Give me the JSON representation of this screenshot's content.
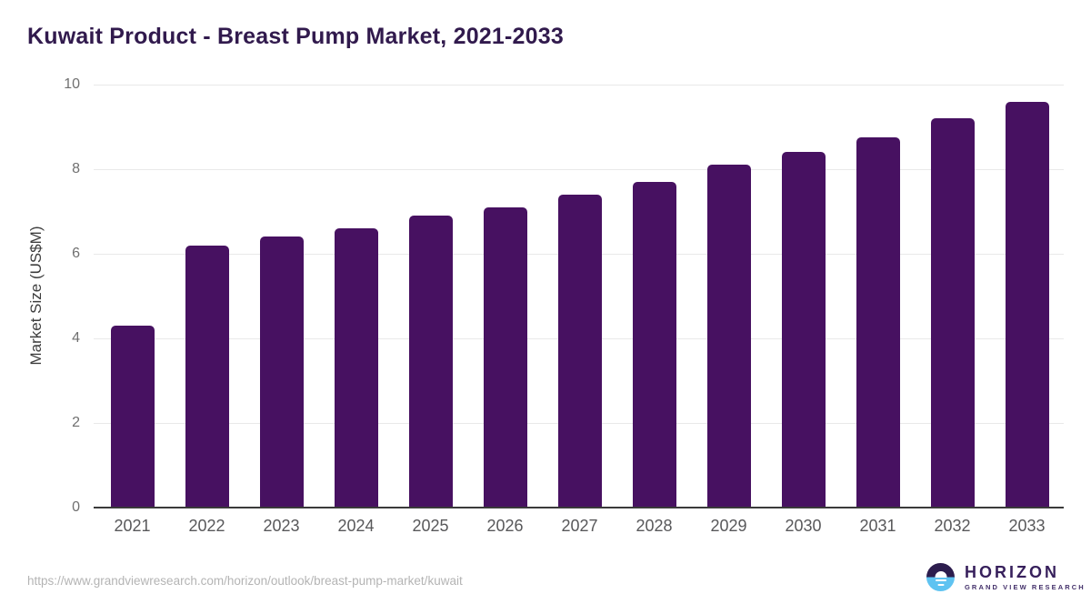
{
  "title": "Kuwait Product - Breast Pump Market, 2021-2033",
  "source_url": "https://www.grandviewresearch.com/horizon/outlook/breast-pump-market/kuwait",
  "logo": {
    "name": "HORIZON",
    "subtitle": "GRAND VIEW RESEARCH",
    "icon": "sunset-horizon-icon"
  },
  "colors": {
    "bar": "#471161",
    "title_text": "#311a4d",
    "gridline": "#e9e9e9",
    "axis_line": "#3a3a3a",
    "y_tick_text": "#707070",
    "x_tick_text": "#58585a",
    "url_text": "#b4b4b4",
    "logo_purple": "#2d1d4e",
    "logo_blue": "#5fc3f1",
    "logo_text": "#37205c"
  },
  "chart_data": {
    "type": "bar",
    "title": "Kuwait Product - Breast Pump Market, 2021-2033",
    "categories": [
      "2021",
      "2022",
      "2023",
      "2024",
      "2025",
      "2026",
      "2027",
      "2028",
      "2029",
      "2030",
      "2031",
      "2032",
      "2033"
    ],
    "values": [
      4.3,
      6.2,
      6.4,
      6.6,
      6.9,
      7.1,
      7.4,
      7.7,
      8.1,
      8.4,
      8.75,
      9.2,
      9.6
    ],
    "xlabel": "",
    "ylabel": "Market Size (US$M)",
    "ylim": [
      0,
      10
    ],
    "yticks": [
      0,
      2,
      4,
      6,
      8,
      10
    ],
    "grid": "horizontal",
    "legend": false,
    "bar_color": "#471161"
  }
}
